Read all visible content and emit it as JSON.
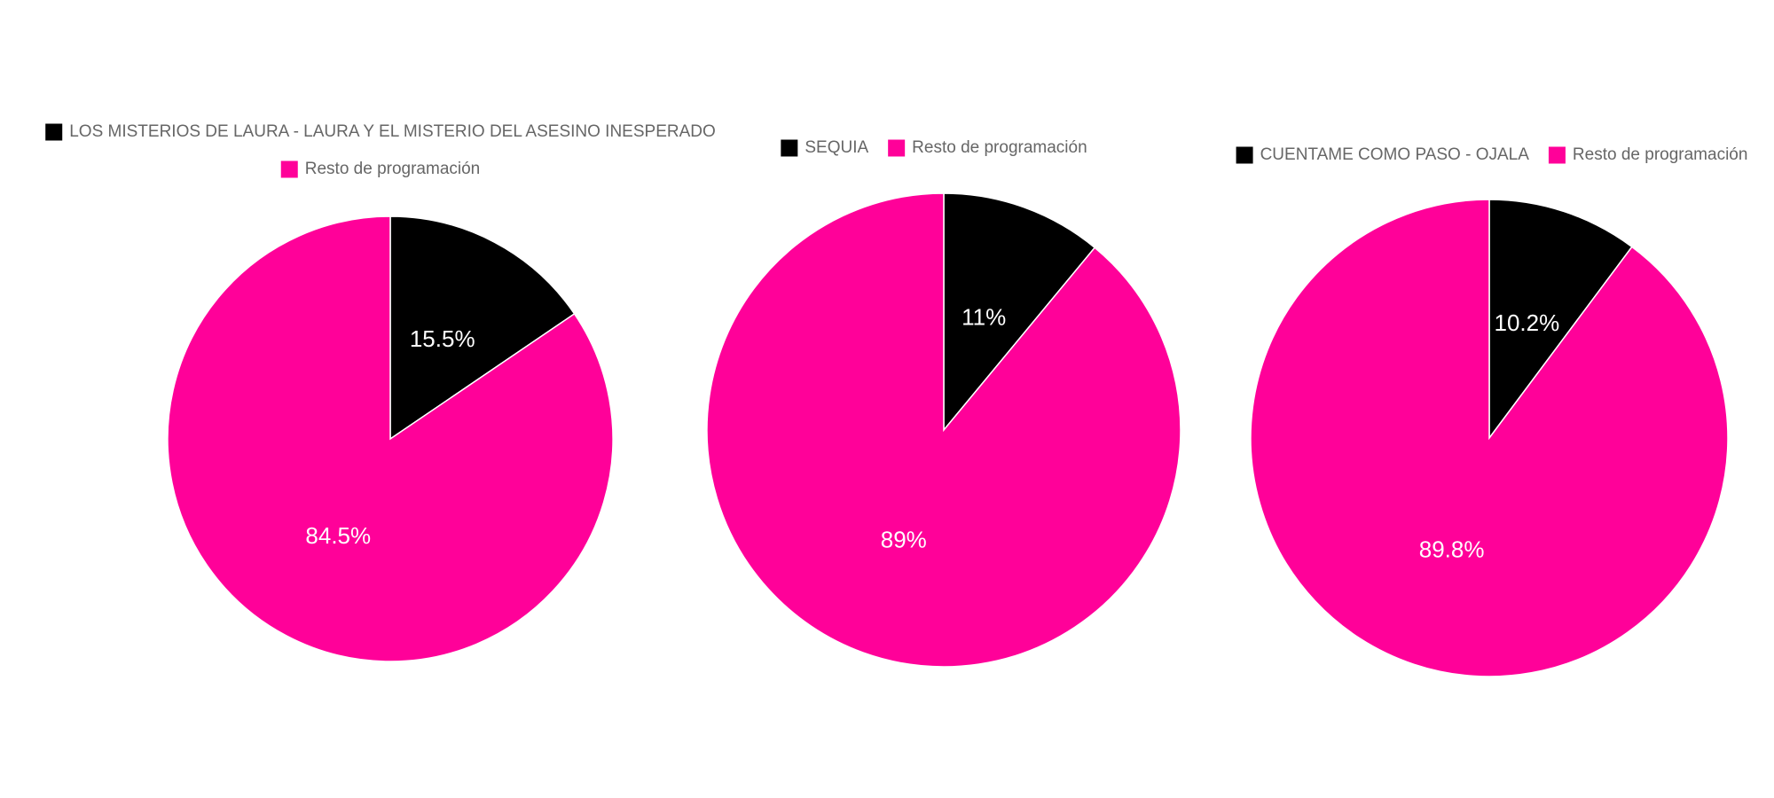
{
  "chart_data": [
    {
      "type": "pie",
      "categories": [
        "LOS MISTERIOS DE LAURA - LAURA Y EL MISTERIO DEL ASESINO INESPERADO",
        "Resto de programación"
      ],
      "values": [
        15.5,
        84.5
      ],
      "value_labels": [
        "15.5%",
        "84.5%"
      ],
      "colors": [
        "#000000",
        "#ff0199"
      ]
    },
    {
      "type": "pie",
      "categories": [
        "SEQUIA",
        "Resto de programación"
      ],
      "values": [
        11,
        89
      ],
      "value_labels": [
        "11%",
        "89%"
      ],
      "colors": [
        "#000000",
        "#ff0199"
      ]
    },
    {
      "type": "pie",
      "categories": [
        "CUENTAME COMO PASO - OJALA",
        "Resto de programación"
      ],
      "values": [
        10.2,
        89.8
      ],
      "value_labels": [
        "10.2%",
        "89.8%"
      ],
      "colors": [
        "#000000",
        "#ff0199"
      ]
    }
  ]
}
